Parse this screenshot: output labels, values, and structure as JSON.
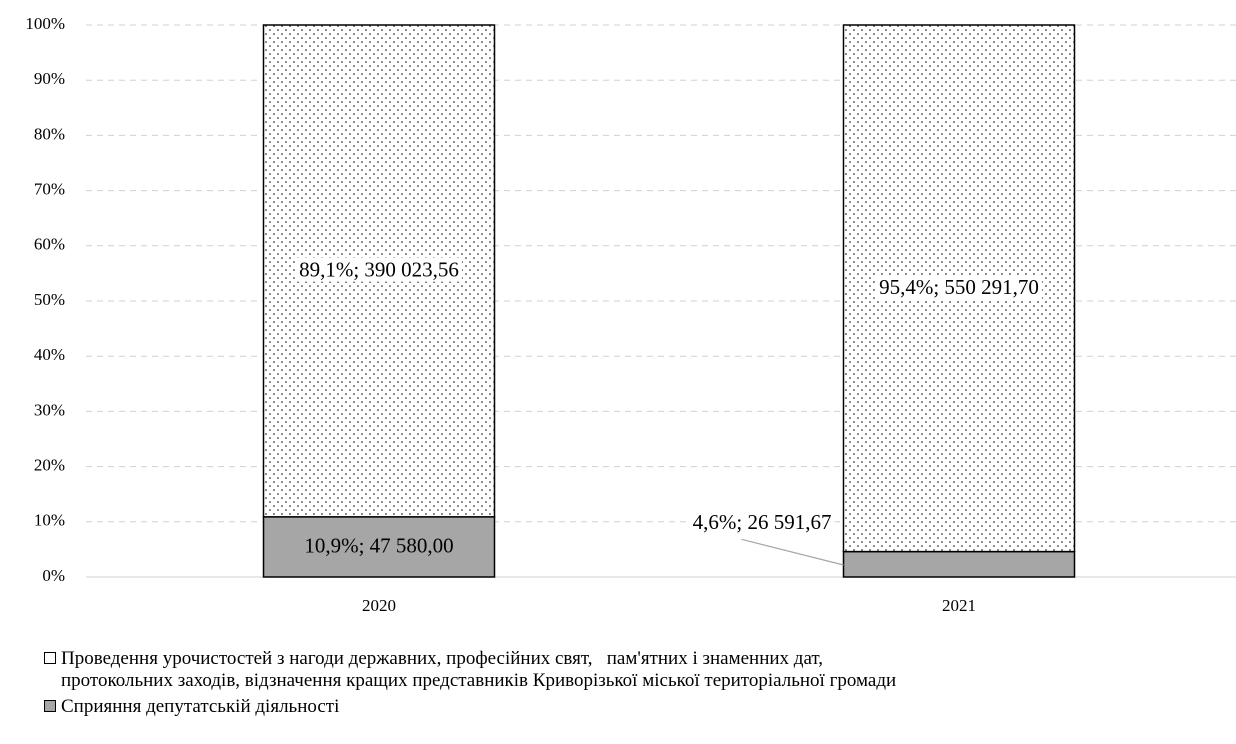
{
  "chart_data": {
    "type": "stacked_bar_percent",
    "categories": [
      "2020",
      "2021"
    ],
    "series": [
      {
        "name": "Сприяння депутатській діяльності",
        "color": "#a6a6a6",
        "values": [
          10.9,
          4.6
        ],
        "value_labels": [
          "10,9%; 47 580,00",
          "4,6%; 26 591,67"
        ]
      },
      {
        "name": "Проведення урочистостей з нагоди державних, професійних свят,   пам'ятних і знаменних дат,\nпротокольних заходів, відзначення кращих представників Криворізької міської територіальної громади",
        "color": "#ffffff",
        "pattern": "dots",
        "values": [
          89.1,
          95.4
        ],
        "value_labels": [
          "89,1%; 390 023,56",
          "95,4%; 550 291,70"
        ]
      }
    ],
    "ylim": [
      0,
      100
    ],
    "yticks": [
      {
        "value": 0,
        "label": "0%"
      },
      {
        "value": 10,
        "label": "10%"
      },
      {
        "value": 20,
        "label": "20%"
      },
      {
        "value": 30,
        "label": "30%"
      },
      {
        "value": 40,
        "label": "40%"
      },
      {
        "value": 50,
        "label": "50%"
      },
      {
        "value": 60,
        "label": "60%"
      },
      {
        "value": 70,
        "label": "70%"
      },
      {
        "value": 80,
        "label": "80%"
      },
      {
        "value": 90,
        "label": "90%"
      },
      {
        "value": 100,
        "label": "100%"
      }
    ],
    "grid": true,
    "legend": "bottom"
  }
}
